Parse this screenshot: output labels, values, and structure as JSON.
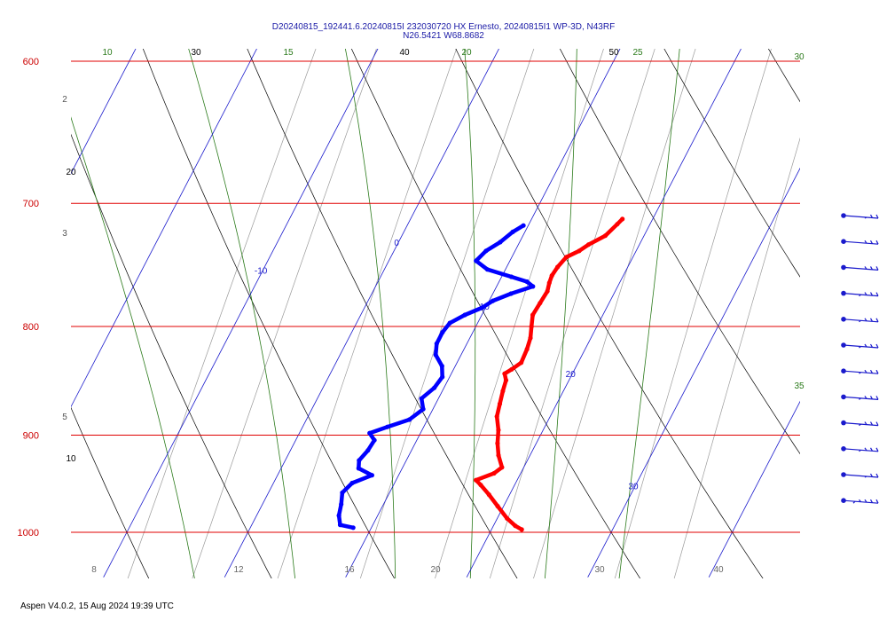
{
  "title_line1": "D20240815_192441.6.20240815I 232030720 HX Ernesto, 20240815I1 WP-3D, N43RF",
  "title_line2": "N26.5421 W68.8682",
  "footer": "Aspen V4.0.2, 15 Aug 2024  19:39 UTC",
  "colors": {
    "isobar": "#e00000",
    "isotherm": "#1a1acc",
    "dry_adiabat": "#000000",
    "moist_adiabat": "#2a7a1a",
    "mixing_ratio": "#9a9a9a",
    "temperature": "#ff0000",
    "dewpoint": "#0000ff"
  },
  "chart_data": {
    "type": "skew-t",
    "pressure_levels": [
      "600",
      "700",
      "800",
      "900",
      "1000"
    ],
    "isotherm_labels": [
      "-10",
      "0",
      "10",
      "20",
      "30"
    ],
    "dry_adiabat_labels": [
      "10",
      "20",
      "30",
      "40",
      "50"
    ],
    "moist_adiabat_labels": [
      "10",
      "15",
      "20",
      "25",
      "30",
      "35"
    ],
    "mixing_ratio_left_labels": [
      "2",
      "3",
      "5"
    ],
    "bottom_axis_labels": [
      "8",
      "12",
      "16",
      "20",
      "30",
      "40"
    ],
    "temperature": [
      {
        "p": 712,
        "t": 17.5
      },
      {
        "p": 716,
        "t": 17.3
      },
      {
        "p": 725,
        "t": 16.8
      },
      {
        "p": 732,
        "t": 15.8
      },
      {
        "p": 737,
        "t": 15.3
      },
      {
        "p": 742,
        "t": 14.5
      },
      {
        "p": 750,
        "t": 14.2
      },
      {
        "p": 757,
        "t": 14.1
      },
      {
        "p": 763,
        "t": 14.2
      },
      {
        "p": 770,
        "t": 14.4
      },
      {
        "p": 780,
        "t": 14.3
      },
      {
        "p": 790,
        "t": 14.2
      },
      {
        "p": 800,
        "t": 14.6
      },
      {
        "p": 810,
        "t": 15.0
      },
      {
        "p": 820,
        "t": 15.2
      },
      {
        "p": 832,
        "t": 15.3
      },
      {
        "p": 838,
        "t": 14.8
      },
      {
        "p": 842,
        "t": 14.4
      },
      {
        "p": 848,
        "t": 14.8
      },
      {
        "p": 858,
        "t": 15.0
      },
      {
        "p": 870,
        "t": 15.3
      },
      {
        "p": 882,
        "t": 15.6
      },
      {
        "p": 895,
        "t": 16.3
      },
      {
        "p": 908,
        "t": 16.8
      },
      {
        "p": 920,
        "t": 17.4
      },
      {
        "p": 932,
        "t": 18.2
      },
      {
        "p": 938,
        "t": 17.8
      },
      {
        "p": 945,
        "t": 16.6
      },
      {
        "p": 950,
        "t": 17.2
      },
      {
        "p": 960,
        "t": 18.3
      },
      {
        "p": 972,
        "t": 19.5
      },
      {
        "p": 985,
        "t": 20.8
      },
      {
        "p": 993,
        "t": 21.8
      },
      {
        "p": 997,
        "t": 22.5
      }
    ],
    "dewpoint": [
      {
        "p": 717,
        "t": 9.6
      },
      {
        "p": 722,
        "t": 9.0
      },
      {
        "p": 730,
        "t": 8.4
      },
      {
        "p": 737,
        "t": 7.6
      },
      {
        "p": 745,
        "t": 7.2
      },
      {
        "p": 752,
        "t": 8.5
      },
      {
        "p": 758,
        "t": 10.8
      },
      {
        "p": 762,
        "t": 12.3
      },
      {
        "p": 766,
        "t": 13.0
      },
      {
        "p": 772,
        "t": 11.5
      },
      {
        "p": 778,
        "t": 10.3
      },
      {
        "p": 784,
        "t": 9.7
      },
      {
        "p": 790,
        "t": 8.6
      },
      {
        "p": 797,
        "t": 7.7
      },
      {
        "p": 805,
        "t": 7.5
      },
      {
        "p": 815,
        "t": 7.5
      },
      {
        "p": 825,
        "t": 7.9
      },
      {
        "p": 835,
        "t": 8.9
      },
      {
        "p": 845,
        "t": 9.4
      },
      {
        "p": 855,
        "t": 9.2
      },
      {
        "p": 865,
        "t": 8.6
      },
      {
        "p": 875,
        "t": 9.2
      },
      {
        "p": 885,
        "t": 8.5
      },
      {
        "p": 892,
        "t": 7.0
      },
      {
        "p": 898,
        "t": 5.8
      },
      {
        "p": 905,
        "t": 6.5
      },
      {
        "p": 915,
        "t": 6.4
      },
      {
        "p": 925,
        "t": 6.1
      },
      {
        "p": 933,
        "t": 6.4
      },
      {
        "p": 940,
        "t": 7.8
      },
      {
        "p": 948,
        "t": 6.5
      },
      {
        "p": 958,
        "t": 6.1
      },
      {
        "p": 970,
        "t": 6.5
      },
      {
        "p": 982,
        "t": 6.8
      },
      {
        "p": 992,
        "t": 7.3
      },
      {
        "p": 995,
        "t": 8.5
      }
    ],
    "wind_barbs": [
      {
        "speed": 25
      },
      {
        "speed": 30
      },
      {
        "speed": 30
      },
      {
        "speed": 35
      },
      {
        "speed": 35
      },
      {
        "speed": 35
      },
      {
        "speed": 35
      },
      {
        "speed": 35
      },
      {
        "speed": 35
      },
      {
        "speed": 35
      },
      {
        "speed": 25
      },
      {
        "speed": 45
      }
    ],
    "grid": true
  }
}
